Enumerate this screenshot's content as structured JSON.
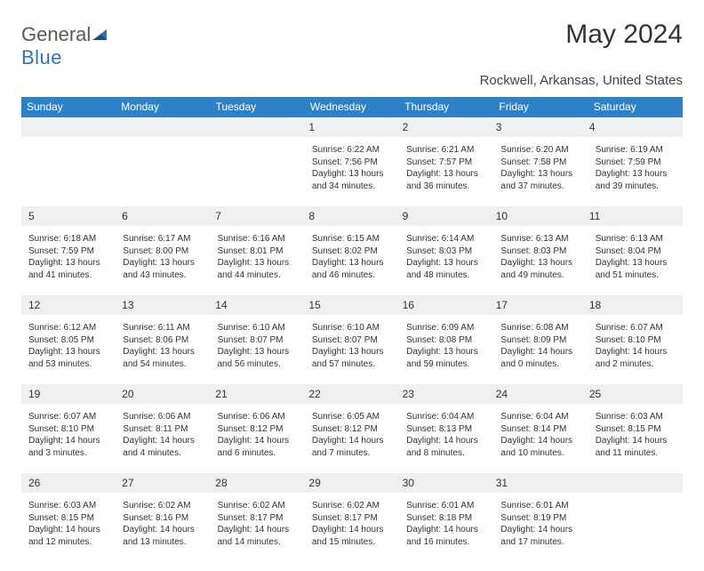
{
  "logo": {
    "text1": "General",
    "text2": "Blue"
  },
  "title": "May 2024",
  "location": "Rockwell, Arkansas, United States",
  "colors": {
    "header_bg": "#2d82c7",
    "header_text": "#ffffff",
    "daynum_bg": "#eef0f2",
    "rule": "#1f4e79",
    "brand_gray": "#5a5a5a",
    "brand_blue": "#2d73b8"
  },
  "day_headers": [
    "Sunday",
    "Monday",
    "Tuesday",
    "Wednesday",
    "Thursday",
    "Friday",
    "Saturday"
  ],
  "weeks": [
    {
      "nums": [
        "",
        "",
        "",
        "1",
        "2",
        "3",
        "4"
      ],
      "cells": [
        {
          "sunrise": "",
          "sunset": "",
          "dl1": "",
          "dl2": ""
        },
        {
          "sunrise": "",
          "sunset": "",
          "dl1": "",
          "dl2": ""
        },
        {
          "sunrise": "",
          "sunset": "",
          "dl1": "",
          "dl2": ""
        },
        {
          "sunrise": "Sunrise: 6:22 AM",
          "sunset": "Sunset: 7:56 PM",
          "dl1": "Daylight: 13 hours",
          "dl2": "and 34 minutes."
        },
        {
          "sunrise": "Sunrise: 6:21 AM",
          "sunset": "Sunset: 7:57 PM",
          "dl1": "Daylight: 13 hours",
          "dl2": "and 36 minutes."
        },
        {
          "sunrise": "Sunrise: 6:20 AM",
          "sunset": "Sunset: 7:58 PM",
          "dl1": "Daylight: 13 hours",
          "dl2": "and 37 minutes."
        },
        {
          "sunrise": "Sunrise: 6:19 AM",
          "sunset": "Sunset: 7:59 PM",
          "dl1": "Daylight: 13 hours",
          "dl2": "and 39 minutes."
        }
      ]
    },
    {
      "nums": [
        "5",
        "6",
        "7",
        "8",
        "9",
        "10",
        "11"
      ],
      "cells": [
        {
          "sunrise": "Sunrise: 6:18 AM",
          "sunset": "Sunset: 7:59 PM",
          "dl1": "Daylight: 13 hours",
          "dl2": "and 41 minutes."
        },
        {
          "sunrise": "Sunrise: 6:17 AM",
          "sunset": "Sunset: 8:00 PM",
          "dl1": "Daylight: 13 hours",
          "dl2": "and 43 minutes."
        },
        {
          "sunrise": "Sunrise: 6:16 AM",
          "sunset": "Sunset: 8:01 PM",
          "dl1": "Daylight: 13 hours",
          "dl2": "and 44 minutes."
        },
        {
          "sunrise": "Sunrise: 6:15 AM",
          "sunset": "Sunset: 8:02 PM",
          "dl1": "Daylight: 13 hours",
          "dl2": "and 46 minutes."
        },
        {
          "sunrise": "Sunrise: 6:14 AM",
          "sunset": "Sunset: 8:03 PM",
          "dl1": "Daylight: 13 hours",
          "dl2": "and 48 minutes."
        },
        {
          "sunrise": "Sunrise: 6:13 AM",
          "sunset": "Sunset: 8:03 PM",
          "dl1": "Daylight: 13 hours",
          "dl2": "and 49 minutes."
        },
        {
          "sunrise": "Sunrise: 6:13 AM",
          "sunset": "Sunset: 8:04 PM",
          "dl1": "Daylight: 13 hours",
          "dl2": "and 51 minutes."
        }
      ]
    },
    {
      "nums": [
        "12",
        "13",
        "14",
        "15",
        "16",
        "17",
        "18"
      ],
      "cells": [
        {
          "sunrise": "Sunrise: 6:12 AM",
          "sunset": "Sunset: 8:05 PM",
          "dl1": "Daylight: 13 hours",
          "dl2": "and 53 minutes."
        },
        {
          "sunrise": "Sunrise: 6:11 AM",
          "sunset": "Sunset: 8:06 PM",
          "dl1": "Daylight: 13 hours",
          "dl2": "and 54 minutes."
        },
        {
          "sunrise": "Sunrise: 6:10 AM",
          "sunset": "Sunset: 8:07 PM",
          "dl1": "Daylight: 13 hours",
          "dl2": "and 56 minutes."
        },
        {
          "sunrise": "Sunrise: 6:10 AM",
          "sunset": "Sunset: 8:07 PM",
          "dl1": "Daylight: 13 hours",
          "dl2": "and 57 minutes."
        },
        {
          "sunrise": "Sunrise: 6:09 AM",
          "sunset": "Sunset: 8:08 PM",
          "dl1": "Daylight: 13 hours",
          "dl2": "and 59 minutes."
        },
        {
          "sunrise": "Sunrise: 6:08 AM",
          "sunset": "Sunset: 8:09 PM",
          "dl1": "Daylight: 14 hours",
          "dl2": "and 0 minutes."
        },
        {
          "sunrise": "Sunrise: 6:07 AM",
          "sunset": "Sunset: 8:10 PM",
          "dl1": "Daylight: 14 hours",
          "dl2": "and 2 minutes."
        }
      ]
    },
    {
      "nums": [
        "19",
        "20",
        "21",
        "22",
        "23",
        "24",
        "25"
      ],
      "cells": [
        {
          "sunrise": "Sunrise: 6:07 AM",
          "sunset": "Sunset: 8:10 PM",
          "dl1": "Daylight: 14 hours",
          "dl2": "and 3 minutes."
        },
        {
          "sunrise": "Sunrise: 6:06 AM",
          "sunset": "Sunset: 8:11 PM",
          "dl1": "Daylight: 14 hours",
          "dl2": "and 4 minutes."
        },
        {
          "sunrise": "Sunrise: 6:06 AM",
          "sunset": "Sunset: 8:12 PM",
          "dl1": "Daylight: 14 hours",
          "dl2": "and 6 minutes."
        },
        {
          "sunrise": "Sunrise: 6:05 AM",
          "sunset": "Sunset: 8:12 PM",
          "dl1": "Daylight: 14 hours",
          "dl2": "and 7 minutes."
        },
        {
          "sunrise": "Sunrise: 6:04 AM",
          "sunset": "Sunset: 8:13 PM",
          "dl1": "Daylight: 14 hours",
          "dl2": "and 8 minutes."
        },
        {
          "sunrise": "Sunrise: 6:04 AM",
          "sunset": "Sunset: 8:14 PM",
          "dl1": "Daylight: 14 hours",
          "dl2": "and 10 minutes."
        },
        {
          "sunrise": "Sunrise: 6:03 AM",
          "sunset": "Sunset: 8:15 PM",
          "dl1": "Daylight: 14 hours",
          "dl2": "and 11 minutes."
        }
      ]
    },
    {
      "nums": [
        "26",
        "27",
        "28",
        "29",
        "30",
        "31",
        ""
      ],
      "cells": [
        {
          "sunrise": "Sunrise: 6:03 AM",
          "sunset": "Sunset: 8:15 PM",
          "dl1": "Daylight: 14 hours",
          "dl2": "and 12 minutes."
        },
        {
          "sunrise": "Sunrise: 6:02 AM",
          "sunset": "Sunset: 8:16 PM",
          "dl1": "Daylight: 14 hours",
          "dl2": "and 13 minutes."
        },
        {
          "sunrise": "Sunrise: 6:02 AM",
          "sunset": "Sunset: 8:17 PM",
          "dl1": "Daylight: 14 hours",
          "dl2": "and 14 minutes."
        },
        {
          "sunrise": "Sunrise: 6:02 AM",
          "sunset": "Sunset: 8:17 PM",
          "dl1": "Daylight: 14 hours",
          "dl2": "and 15 minutes."
        },
        {
          "sunrise": "Sunrise: 6:01 AM",
          "sunset": "Sunset: 8:18 PM",
          "dl1": "Daylight: 14 hours",
          "dl2": "and 16 minutes."
        },
        {
          "sunrise": "Sunrise: 6:01 AM",
          "sunset": "Sunset: 8:19 PM",
          "dl1": "Daylight: 14 hours",
          "dl2": "and 17 minutes."
        },
        {
          "sunrise": "",
          "sunset": "",
          "dl1": "",
          "dl2": ""
        }
      ]
    }
  ]
}
